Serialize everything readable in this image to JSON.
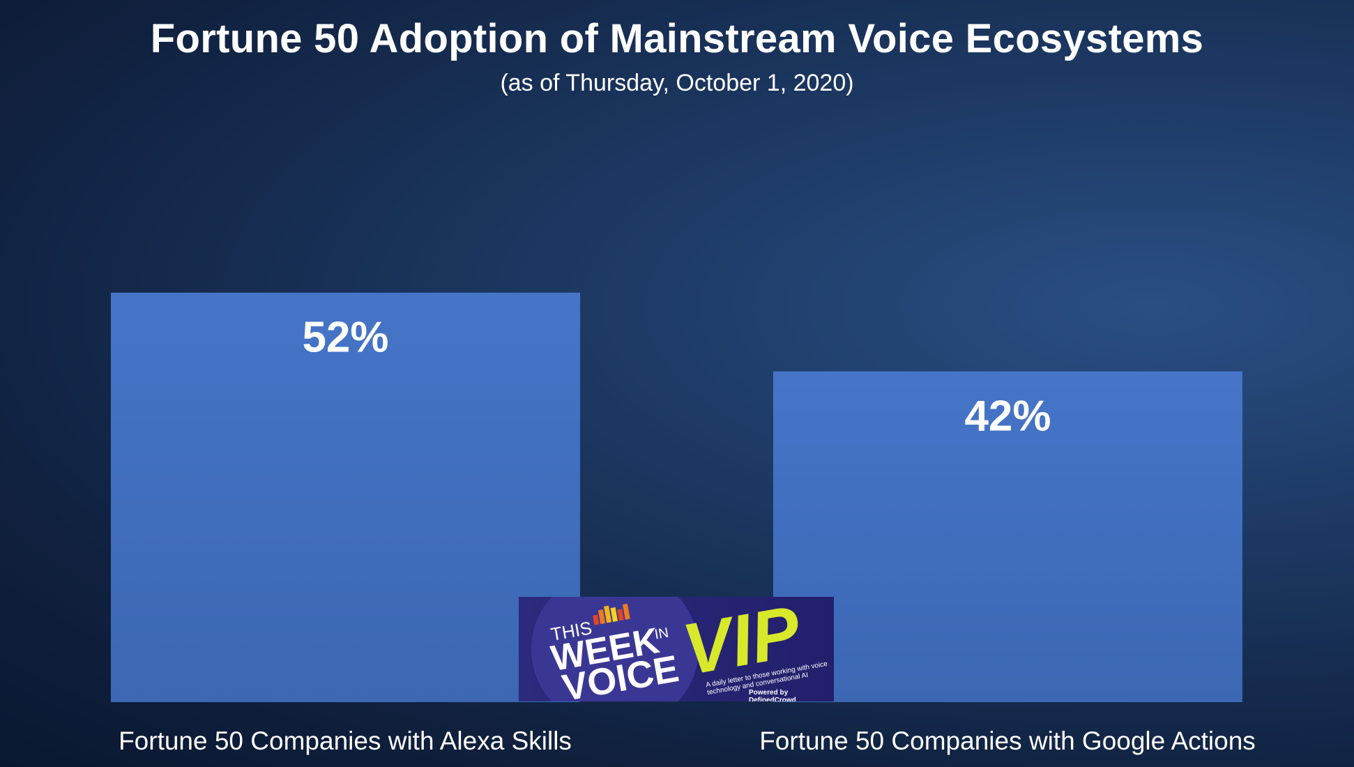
{
  "chart_data": {
    "type": "bar",
    "title": "Fortune 50 Adoption of Mainstream Voice Ecosystems",
    "subtitle": "(as of Thursday, October 1, 2020)",
    "categories": [
      "Fortune 50 Companies with Alexa Skills",
      "Fortune 50 Companies with Google Actions"
    ],
    "values": [
      52,
      42
    ],
    "value_labels": [
      "52%",
      "42%"
    ],
    "ylim": [
      0,
      60
    ],
    "grid": false,
    "bar_color": "#4472c4"
  },
  "logo": {
    "this": "THIS",
    "week": "WEEK",
    "in": "IN",
    "voice": "VOICE",
    "vip": "VIP",
    "tagline": "A daily letter to those working with voice technology and conversational AI",
    "powered_by": "Powered by DefinedCrowd"
  }
}
